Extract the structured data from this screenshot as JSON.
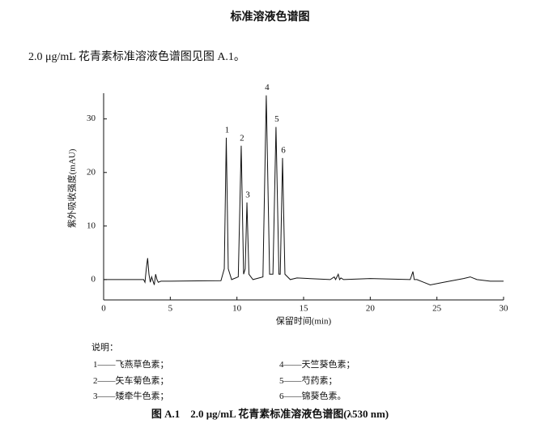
{
  "header": {
    "title": "标准溶液色谱图"
  },
  "intro": "2.0 μg/mL 花青素标准溶液色谱图见图 A.1。",
  "chart_data": {
    "type": "line",
    "xlabel": "保留时间(min)",
    "ylabel": "紫外吸收强度(mAU)",
    "x": [
      0,
      3.0,
      3.1,
      3.2,
      3.3,
      3.4,
      3.5,
      3.6,
      3.8,
      3.9,
      4.0,
      4.1,
      4.3,
      5.0,
      8.8,
      9.05,
      9.2,
      9.35,
      9.6,
      10.1,
      10.32,
      10.5,
      10.62,
      10.75,
      10.9,
      11.2,
      11.95,
      12.2,
      12.45,
      12.7,
      12.93,
      13.15,
      13.25,
      13.42,
      13.6,
      14.0,
      14.5,
      17.0,
      17.3,
      17.4,
      17.6,
      17.7,
      17.8,
      18.0,
      20.0,
      23.0,
      23.2,
      23.3,
      23.5,
      24.0,
      24.5,
      25.5,
      27.0,
      27.5,
      28.0,
      29.0,
      30.0
    ],
    "values": [
      0,
      0,
      -0.5,
      2,
      4,
      1,
      -0.5,
      0.5,
      -1,
      1,
      0,
      -0.5,
      -0.3,
      -0.3,
      -0.2,
      2,
      26.5,
      2,
      0,
      0.5,
      25,
      1,
      2,
      14.4,
      1,
      0,
      0.5,
      34.4,
      1,
      1,
      28.5,
      1,
      1,
      22.7,
      1,
      0,
      0.3,
      0,
      0.5,
      0,
      1,
      0,
      0.3,
      0,
      0.2,
      0,
      1.5,
      0,
      0,
      -0.5,
      -1,
      -0.5,
      0.2,
      0.5,
      0,
      -0.3,
      -0.3
    ],
    "value_labels": [
      null,
      null,
      null,
      null,
      null,
      null,
      null,
      null,
      null,
      null,
      null,
      null,
      null,
      null,
      null,
      null,
      "1",
      null,
      null,
      null,
      "2",
      null,
      null,
      "3",
      null,
      null,
      null,
      "4",
      null,
      null,
      "5",
      null,
      null,
      "6",
      null,
      null,
      null,
      null,
      null,
      null,
      null,
      null,
      null,
      null,
      null,
      null,
      null,
      null,
      null,
      null,
      null,
      null,
      null,
      null,
      null,
      null,
      null
    ],
    "color": "#111111",
    "xlim": [
      0,
      30
    ],
    "xticks": [
      0,
      5,
      10,
      15,
      20,
      25,
      30
    ],
    "ylim": [
      -3.8,
      34.8
    ],
    "yticks": [
      0,
      10,
      20,
      30
    ]
  },
  "notes": {
    "title": "说明：",
    "items": [
      "1——飞燕草色素；",
      "2——矢车菊色素；",
      "3——矮牵牛色素；",
      "4——天竺葵色素；",
      "5——芍药素；",
      "6——锦葵色素。"
    ]
  },
  "caption": "图 A.1　2.0 μg/mL 花青素标准溶液色谱图(λ530 nm)"
}
